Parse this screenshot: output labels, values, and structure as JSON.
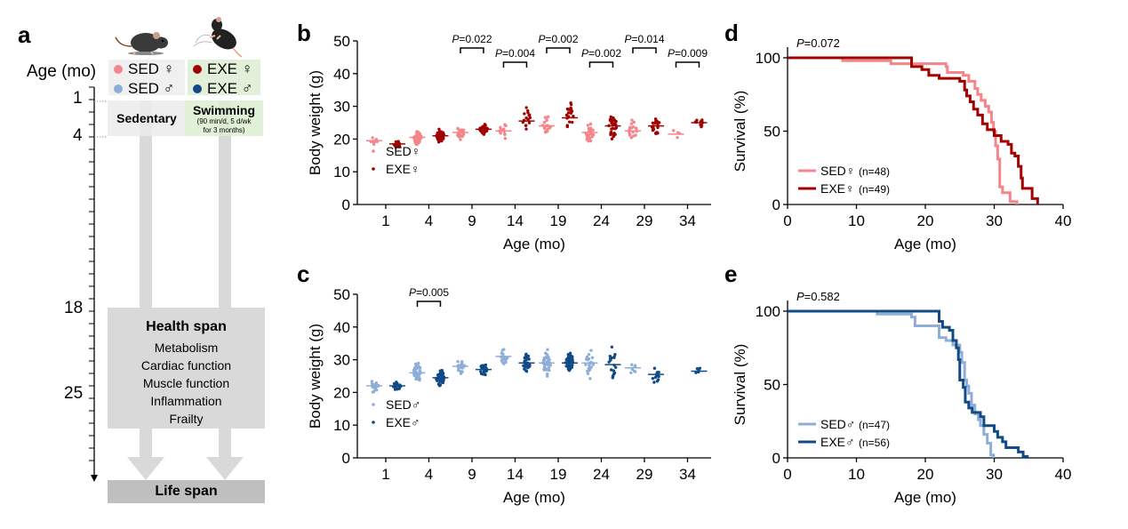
{
  "panel_a": {
    "letter": "a",
    "age_axis_label": "Age (mo)",
    "age_ticks": [
      "1",
      "4",
      "18",
      "25"
    ],
    "groups_sed": [
      {
        "label": "SED ♀",
        "color": "#f4858a"
      },
      {
        "label": "SED ♂",
        "color": "#8eaed8"
      }
    ],
    "groups_exe": [
      {
        "label": "EXE ♀",
        "color": "#a00000"
      },
      {
        "label": "EXE ♂",
        "color": "#114a86"
      }
    ],
    "sedentary_label": "Sedentary",
    "swimming_label": "Swimming",
    "swimming_detail_1": "(90 min/d, 5 d/wk",
    "swimming_detail_2": "for 3 months)",
    "health_span_title": "Health span",
    "health_span_items": [
      "Metabolism",
      "Cardiac function",
      "Muscle function",
      "Inflammation",
      "Frailty"
    ],
    "life_span_label": "Life span",
    "icons": {
      "sed_mouse": "sedentary-mouse-icon",
      "exe_mouse": "swimming-mouse-icon"
    }
  },
  "colors": {
    "sed_female": "#f4858a",
    "exe_female": "#a00000",
    "sed_male": "#8eaed8",
    "exe_male": "#114a86",
    "box_grey": "#f0f0f0",
    "box_green": "#e2f0d9",
    "arrow_grey": "#d9d9d9",
    "health_grey": "#d9d9d9",
    "life_grey": "#bfbfbf"
  },
  "chart_data": [
    {
      "id": "b",
      "letter": "b",
      "type": "scatter",
      "title": "",
      "xlabel": "Age (mo)",
      "ylabel": "Body weight (g)",
      "ylim": [
        0,
        50
      ],
      "yticks": [
        "0",
        "10",
        "20",
        "30",
        "40",
        "50"
      ],
      "categories": [
        "1",
        "4",
        "9",
        "14",
        "19",
        "24",
        "29",
        "34"
      ],
      "series": [
        {
          "name": "SED♀",
          "color": "#f4858a",
          "medians": [
            19.5,
            20.5,
            22,
            22.5,
            24,
            22,
            22.5,
            21.5
          ],
          "spread": [
            1,
            2,
            2,
            3,
            3,
            4,
            3,
            3
          ],
          "n": [
            12,
            40,
            25,
            15,
            20,
            25,
            18,
            4
          ]
        },
        {
          "name": "EXE♀",
          "color": "#a00000",
          "medians": [
            18.5,
            21,
            23,
            25.5,
            26.5,
            24,
            24,
            25
          ],
          "spread": [
            1.2,
            2,
            1.5,
            4,
            4,
            4,
            3,
            1.8
          ],
          "n": [
            15,
            40,
            40,
            15,
            20,
            30,
            25,
            10
          ]
        }
      ],
      "comparisons": [
        {
          "category": "9",
          "p": "=0.022",
          "level": "high"
        },
        {
          "category": "14",
          "p": "=0.004",
          "level": "low"
        },
        {
          "category": "19",
          "p": "=0.002",
          "level": "high"
        },
        {
          "category": "24",
          "p": "=0.002",
          "level": "low"
        },
        {
          "category": "29",
          "p": "=0.014",
          "level": "high"
        },
        {
          "category": "34",
          "p": "=0.009",
          "level": "low"
        }
      ],
      "legend": [
        "SED♀",
        "EXE♀"
      ],
      "legend_position": "bottom-left"
    },
    {
      "id": "c",
      "letter": "c",
      "type": "scatter",
      "title": "",
      "xlabel": "Age (mo)",
      "ylabel": "Body weight (g)",
      "ylim": [
        0,
        50
      ],
      "yticks": [
        "0",
        "10",
        "20",
        "30",
        "40",
        "50"
      ],
      "categories": [
        "1",
        "4",
        "9",
        "14",
        "19",
        "24",
        "29",
        "34"
      ],
      "series": [
        {
          "name": "SED♂",
          "color": "#8eaed8",
          "medians": [
            22,
            26,
            28,
            31,
            29,
            29,
            27.5,
            null
          ],
          "spread": [
            2,
            3,
            2.5,
            2.5,
            3.5,
            4.5,
            2,
            0
          ],
          "n": [
            20,
            40,
            20,
            18,
            40,
            22,
            8,
            0
          ]
        },
        {
          "name": "EXE♂",
          "color": "#114a86",
          "medians": [
            22,
            24.5,
            27,
            29,
            29,
            28.5,
            25.5,
            26.5
          ],
          "spread": [
            1.5,
            2.5,
            2.5,
            3,
            3,
            5,
            3,
            1.2
          ],
          "n": [
            20,
            50,
            25,
            30,
            40,
            18,
            12,
            6
          ]
        }
      ],
      "comparisons": [
        {
          "category": "4",
          "p": "=0.005",
          "level": "high"
        }
      ],
      "legend": [
        "SED♂",
        "EXE♂"
      ],
      "legend_position": "bottom-left"
    },
    {
      "id": "d",
      "letter": "d",
      "type": "line",
      "title": "",
      "pvalue": "=0.072",
      "xlabel": "Age (mo)",
      "ylabel": "Survival (%)",
      "xlim": [
        0,
        40
      ],
      "ylim": [
        0,
        100
      ],
      "xticks": [
        "0",
        "10",
        "20",
        "30",
        "40"
      ],
      "yticks": [
        "0",
        "50",
        "100"
      ],
      "series": [
        {
          "name": "SED♀ (n=48)",
          "label_base": "SED♀",
          "label_n": "(n=48)",
          "color": "#f4858a",
          "steps": [
            [
              0,
              100
            ],
            [
              8,
              98
            ],
            [
              15,
              96
            ],
            [
              20.5,
              96
            ],
            [
              23,
              94
            ],
            [
              23.2,
              90
            ],
            [
              25.5,
              88
            ],
            [
              26.3,
              84
            ],
            [
              27.2,
              79
            ],
            [
              27.6,
              75
            ],
            [
              28.1,
              71
            ],
            [
              28.7,
              67
            ],
            [
              29.2,
              63
            ],
            [
              29.6,
              56
            ],
            [
              29.9,
              50
            ],
            [
              30.2,
              40
            ],
            [
              30.5,
              31
            ],
            [
              30.8,
              12
            ],
            [
              31.2,
              8
            ],
            [
              32.3,
              2
            ],
            [
              33.3,
              0
            ]
          ]
        },
        {
          "name": "EXE♀ (n=49)",
          "label_base": "EXE♀",
          "label_n": "(n=49)",
          "color": "#a00000",
          "steps": [
            [
              0,
              100
            ],
            [
              9,
              100
            ],
            [
              18,
              94
            ],
            [
              19.5,
              92
            ],
            [
              20.5,
              88
            ],
            [
              22,
              86
            ],
            [
              25,
              84
            ],
            [
              25.7,
              78
            ],
            [
              26,
              74
            ],
            [
              26.5,
              70
            ],
            [
              27,
              65
            ],
            [
              27.6,
              61
            ],
            [
              28.3,
              55
            ],
            [
              29,
              51
            ],
            [
              30,
              47
            ],
            [
              31,
              43
            ],
            [
              32,
              41
            ],
            [
              32.5,
              35
            ],
            [
              33,
              33
            ],
            [
              33.5,
              26
            ],
            [
              33.9,
              18
            ],
            [
              34.1,
              11
            ],
            [
              35.5,
              4
            ],
            [
              36.3,
              0
            ]
          ]
        }
      ],
      "legend_position": "bottom-left"
    },
    {
      "id": "e",
      "letter": "e",
      "type": "line",
      "title": "",
      "pvalue": "=0.582",
      "xlabel": "Age (mo)",
      "ylabel": "Survival (%)",
      "xlim": [
        0,
        40
      ],
      "ylim": [
        0,
        100
      ],
      "xticks": [
        "0",
        "10",
        "20",
        "30",
        "40"
      ],
      "yticks": [
        "0",
        "50",
        "100"
      ],
      "series": [
        {
          "name": "SED♂ (n=47)",
          "label_base": "SED♂",
          "label_n": "(n=47)",
          "color": "#8eaed8",
          "steps": [
            [
              0,
              100
            ],
            [
              13,
              98
            ],
            [
              18,
              96
            ],
            [
              18.5,
              90
            ],
            [
              21.7,
              90
            ],
            [
              22,
              82
            ],
            [
              23,
              80
            ],
            [
              24,
              77
            ],
            [
              25,
              72
            ],
            [
              25.3,
              65
            ],
            [
              25.7,
              53
            ],
            [
              26,
              49
            ],
            [
              26.3,
              44
            ],
            [
              26.7,
              36
            ],
            [
              27.2,
              30
            ],
            [
              27.7,
              26
            ],
            [
              28,
              22
            ],
            [
              28.5,
              16
            ],
            [
              29,
              10
            ],
            [
              29.5,
              2
            ],
            [
              29.9,
              0
            ]
          ]
        },
        {
          "name": "EXE♂ (n=56)",
          "label_base": "EXE♂",
          "label_n": "(n=56)",
          "color": "#114a86",
          "steps": [
            [
              0,
              100
            ],
            [
              21.7,
              100
            ],
            [
              22,
              93
            ],
            [
              22.5,
              89
            ],
            [
              23.5,
              87
            ],
            [
              24,
              80
            ],
            [
              24.5,
              75
            ],
            [
              24.8,
              67
            ],
            [
              25,
              53
            ],
            [
              25.5,
              48
            ],
            [
              25.8,
              38
            ],
            [
              26.3,
              34
            ],
            [
              26.8,
              31
            ],
            [
              27.5,
              31
            ],
            [
              28,
              28
            ],
            [
              28.5,
              22
            ],
            [
              30,
              18
            ],
            [
              30.5,
              14
            ],
            [
              31.2,
              11
            ],
            [
              31.7,
              7
            ],
            [
              33.5,
              4
            ],
            [
              34.2,
              1
            ],
            [
              35,
              1
            ]
          ]
        }
      ],
      "legend_position": "bottom-left"
    }
  ]
}
